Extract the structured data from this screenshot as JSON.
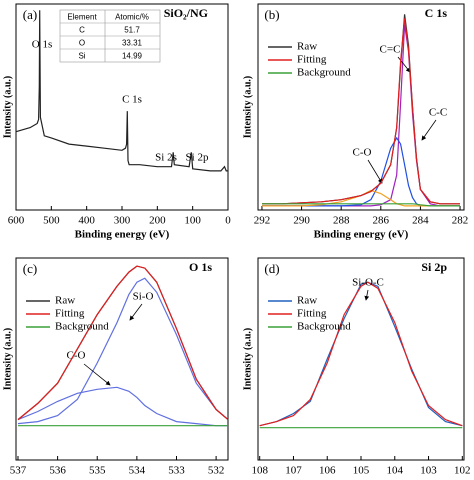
{
  "chart_data": [
    {
      "type": "line",
      "panel_label": "(a)",
      "title": "SiO₂/NG",
      "xlabel": "Binding energy (eV)",
      "ylabel": "Intensity (a.u.)",
      "xlim": [
        600,
        0
      ],
      "xticks": [
        600,
        500,
        400,
        300,
        200,
        100,
        0
      ],
      "ylim": [
        0,
        100
      ],
      "x": [
        600,
        560,
        540,
        536,
        534,
        533,
        531,
        520,
        500,
        450,
        400,
        350,
        300,
        290,
        287,
        285,
        283,
        280,
        250,
        200,
        160,
        155,
        152,
        110,
        104,
        100,
        50,
        20,
        10,
        5,
        0
      ],
      "series": [
        {
          "color": "#222222",
          "values": [
            38,
            40,
            42,
            44,
            60,
            97,
            45,
            36,
            35,
            32,
            31,
            30,
            29,
            30,
            32,
            48,
            24,
            22,
            22,
            21,
            21,
            28,
            22,
            21,
            28,
            20,
            19,
            19,
            21,
            19,
            19
          ]
        }
      ],
      "annotations": [
        "O 1s",
        "C 1s",
        "Si 2s",
        "Si 2p"
      ],
      "table": {
        "header": [
          "Element",
          "Atomic/%"
        ],
        "rows": [
          [
            "C",
            51.7
          ],
          [
            "O",
            33.31
          ],
          [
            "Si",
            14.99
          ]
        ]
      }
    },
    {
      "type": "line",
      "panel_label": "(b)",
      "title": "C 1s",
      "xlabel": "Binding energy (eV)",
      "ylabel": "Intensity (a.u.)",
      "xlim": [
        292.2,
        281.8
      ],
      "xticks": [
        292,
        290,
        288,
        286,
        284,
        282
      ],
      "ylim": [
        0,
        100
      ],
      "x": [
        292,
        291,
        290,
        289,
        288,
        287,
        286.5,
        286,
        285.5,
        285.2,
        285,
        284.8,
        284.6,
        284.4,
        284.2,
        284,
        283.5,
        283,
        282
      ],
      "series": [
        {
          "name": "Raw",
          "color": "#333333",
          "values": [
            3,
            3,
            3.5,
            4,
            5,
            7,
            9,
            13,
            22,
            40,
            70,
            95,
            80,
            50,
            25,
            10,
            4,
            3,
            3
          ]
        },
        {
          "name": "Fitting",
          "color": "#e02020",
          "values": [
            3,
            3,
            3.5,
            4,
            5,
            7,
            9,
            13,
            22,
            40,
            72,
            93,
            78,
            50,
            25,
            10,
            4,
            3,
            3
          ]
        },
        {
          "name": "Background",
          "color": "#3aa03a",
          "values": [
            3,
            3,
            3,
            3,
            3,
            3,
            3,
            3,
            3,
            3,
            3,
            3,
            3,
            3,
            2.8,
            2.5,
            2,
            2,
            2
          ]
        }
      ],
      "components": [
        {
          "label": "C=C",
          "color": "#a020c0",
          "values": [
            2,
            2,
            2,
            2,
            2,
            2,
            2,
            2.5,
            5,
            17,
            52,
            90,
            77,
            47,
            24,
            10,
            3,
            2,
            2
          ]
        },
        {
          "label": "C-C",
          "color": "#2050e0",
          "values": [
            2,
            2,
            2,
            2,
            2,
            2.5,
            5,
            14,
            30,
            35,
            32,
            22,
            12,
            6,
            3,
            2,
            2,
            2,
            2
          ]
        },
        {
          "label": "C-O",
          "color": "#f0a020",
          "values": [
            2,
            2,
            2,
            2.5,
            4,
            7,
            9.5,
            8,
            5,
            3,
            2.5,
            2,
            2,
            2,
            2,
            2,
            2,
            2,
            2
          ]
        }
      ],
      "legend": "upper-left"
    },
    {
      "type": "line",
      "panel_label": "(c)",
      "title": "O 1s",
      "xlabel": "Binding energy (eV)",
      "ylabel": "Intensity (a.u.)",
      "xlim": [
        537.05,
        531.7
      ],
      "xticks": [
        537,
        536,
        535,
        534,
        533,
        532
      ],
      "ylim": [
        0,
        100
      ],
      "x": [
        537,
        536.5,
        536,
        535.5,
        535,
        534.5,
        534.2,
        534,
        533.8,
        533.5,
        533,
        532.5,
        532,
        531.7
      ],
      "series": [
        {
          "name": "Raw",
          "color": "#333333",
          "values": [
            20,
            28,
            38,
            55,
            72,
            86,
            93,
            96,
            95,
            88,
            65,
            40,
            25,
            20
          ]
        },
        {
          "name": "Fitting",
          "color": "#e02020",
          "values": [
            20,
            28,
            38,
            55,
            72,
            86,
            93,
            96,
            95,
            88,
            65,
            40,
            25,
            20
          ]
        },
        {
          "name": "Background",
          "color": "#3aa03a",
          "values": [
            17,
            17,
            17,
            17,
            17,
            17,
            17,
            17,
            17,
            17,
            17,
            17,
            17,
            17
          ]
        }
      ],
      "components": [
        {
          "label": "Si-O",
          "color": "#6070e0",
          "values": [
            18,
            19,
            22,
            30,
            48,
            68,
            82,
            88,
            90,
            83,
            62,
            38,
            25,
            20
          ]
        },
        {
          "label": "C-O",
          "color": "#6070e0",
          "values": [
            20,
            24,
            29,
            33,
            35,
            36,
            34,
            31,
            27,
            23,
            19,
            18,
            17,
            17
          ]
        }
      ],
      "legend": "upper-left"
    },
    {
      "type": "line",
      "panel_label": "(d)",
      "title": "Si 2p",
      "xlabel": "Binding energy (eV)",
      "ylabel": "Intensity (a.u.)",
      "xlim": [
        108.05,
        101.95
      ],
      "xticks": [
        108,
        107,
        106,
        105,
        104,
        103,
        102
      ],
      "ylim": [
        0,
        100
      ],
      "x": [
        108,
        107.5,
        107,
        106.5,
        106,
        105.5,
        105,
        104.8,
        104.5,
        104,
        103.5,
        103,
        102.5,
        102
      ],
      "series": [
        {
          "name": "Raw",
          "color": "#2060c0",
          "values": [
            17,
            19,
            23,
            29,
            50,
            70,
            87,
            88,
            86,
            66,
            45,
            26,
            19,
            17
          ]
        },
        {
          "name": "Fitting",
          "color": "#e02020",
          "values": [
            17,
            19,
            22,
            30,
            48,
            72,
            86,
            88,
            85,
            68,
            44,
            27,
            20,
            17
          ]
        },
        {
          "name": "Background",
          "color": "#3aa03a",
          "values": [
            16,
            16,
            16,
            16,
            16,
            16,
            16,
            16,
            16,
            16,
            16,
            16,
            16,
            16
          ]
        }
      ],
      "annotations": [
        "Si-O-C"
      ],
      "legend": "upper-left"
    }
  ]
}
